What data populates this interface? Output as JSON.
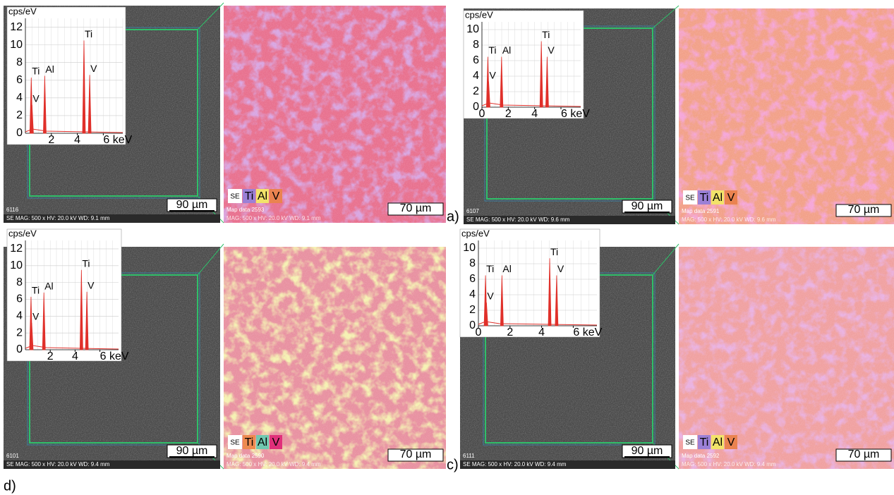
{
  "panels": [
    {
      "label": "a)",
      "se": {
        "id": "6116",
        "caption": "SE  MAG: 500 x  HV: 20.0 kV  WD: 9.1 mm",
        "scale": "90 µm"
      },
      "map": {
        "legend": [
          {
            "name": "SE",
            "color": "#ffffff"
          },
          {
            "name": "Ti",
            "color": "#9b80d6"
          },
          {
            "name": "Al",
            "color": "#f2e36a"
          },
          {
            "name": "V",
            "color": "#ea8350"
          }
        ],
        "id": "Map data 2593",
        "caption": "MAG: 500 x  HV: 20.0 kV  WD: 9.1 mm",
        "scale": "70 µm",
        "colors": [
          "#e8708e",
          "#b060c0"
        ]
      },
      "spectrum": {
        "y_label": "cps/eV",
        "ylim": [
          0,
          13
        ],
        "yticks": [
          0,
          2,
          4,
          6,
          8,
          10,
          12
        ],
        "xlim": [
          0,
          7.5
        ],
        "xticks": [
          2,
          4,
          {
            "value": 6,
            "label": "6 keV"
          }
        ],
        "color": "#e0302a",
        "peaks": [
          {
            "label": "Ti",
            "x": 0.45,
            "y": 6.3
          },
          {
            "label": "V",
            "x": 0.51,
            "y": 3.2
          },
          {
            "label": "Al",
            "x": 1.49,
            "y": 6.5
          },
          {
            "label": "Ti",
            "x": 4.51,
            "y": 10.5
          },
          {
            "label": "V",
            "x": 4.95,
            "y": 6.6
          }
        ]
      }
    },
    {
      "se": {
        "id": "6107",
        "caption": "SE  MAG: 500 x  HV: 20.0 kV  WD: 9.6 mm",
        "scale": "90 µm"
      },
      "map": {
        "legend": [
          {
            "name": "SE",
            "color": "#ffffff"
          },
          {
            "name": "Ti",
            "color": "#9b80d6"
          },
          {
            "name": "Al",
            "color": "#f2e36a"
          },
          {
            "name": "V",
            "color": "#ea8350"
          }
        ],
        "id": "Map data 2591",
        "caption": "MAG: 500 x  HV: 20.0 kV  WD: 9.6 mm",
        "scale": "70 µm",
        "colors": [
          "#f2a088",
          "#e860b0"
        ]
      },
      "spectrum": {
        "y_label": "cps/eV",
        "ylim": [
          0,
          11
        ],
        "yticks": [
          0,
          2,
          4,
          6,
          8,
          10
        ],
        "xlim": [
          0,
          7.5
        ],
        "xticks": [
          0,
          2,
          4,
          {
            "value": 6,
            "label": "6 keV"
          }
        ],
        "color": "#e0302a",
        "peaks": [
          {
            "label": "Ti",
            "x": 0.45,
            "y": 6.5
          },
          {
            "label": "Al",
            "x": 1.49,
            "y": 6.5
          },
          {
            "label": "V",
            "x": 0.51,
            "y": 3.3
          },
          {
            "label": "Ti",
            "x": 4.51,
            "y": 8.5
          },
          {
            "label": "V",
            "x": 4.95,
            "y": 6.5
          }
        ]
      }
    },
    {
      "label": "c)",
      "se": {
        "id": "6101",
        "caption": "SE  MAG: 500 x  HV: 20.0 kV  WD: 9.4 mm",
        "scale": "90 µm"
      },
      "map": {
        "legend": [
          {
            "name": "SE",
            "color": "#ffffff"
          },
          {
            "name": "Ti",
            "color": "#ee8a50"
          },
          {
            "name": "Al",
            "color": "#70c8b0"
          },
          {
            "name": "V",
            "color": "#e0307a"
          }
        ],
        "id": "Map data 2590",
        "caption": "MAG: 500 x  HV: 20.0 kV  WD: 9.4 mm",
        "scale": "70 µm",
        "colors": [
          "#e890a0",
          "#e8e070"
        ]
      },
      "spectrum": {
        "y_label": "cps/eV",
        "ylim": [
          0,
          13
        ],
        "yticks": [
          0,
          2,
          4,
          6,
          8,
          10,
          12
        ],
        "xlim": [
          0,
          7.5
        ],
        "xticks": [
          2,
          4,
          {
            "value": 6,
            "label": "6 keV"
          }
        ],
        "color": "#e0302a",
        "peaks": [
          {
            "label": "Ti",
            "x": 0.45,
            "y": 6.3
          },
          {
            "label": "V",
            "x": 0.51,
            "y": 3.2
          },
          {
            "label": "Al",
            "x": 1.49,
            "y": 6.8
          },
          {
            "label": "Ti",
            "x": 4.51,
            "y": 9.5
          },
          {
            "label": "V",
            "x": 4.95,
            "y": 6.9
          }
        ]
      }
    },
    {
      "label": "d)",
      "se": {
        "id": "6111",
        "caption": "SE  MAG: 500 x  HV: 20.0 kV  WD: 9.4 mm",
        "scale": "90 µm"
      },
      "map": {
        "legend": [
          {
            "name": "SE",
            "color": "#ffffff"
          },
          {
            "name": "Ti",
            "color": "#9b80d6"
          },
          {
            "name": "Al",
            "color": "#f2e36a"
          },
          {
            "name": "V",
            "color": "#ea8350"
          }
        ],
        "id": "Map data 2592",
        "caption": "MAG: 500 x  HV: 20.0 kV  WD: 9.4 mm",
        "scale": "70 µm",
        "colors": [
          "#f0a0a0",
          "#d070c0"
        ]
      },
      "spectrum": {
        "y_label": "cps/eV",
        "ylim": [
          0,
          11
        ],
        "yticks": [
          0,
          2,
          4,
          6,
          8,
          10
        ],
        "xlim": [
          0,
          7.5
        ],
        "xticks": [
          0,
          2,
          4,
          {
            "value": 6,
            "label": "6 keV"
          }
        ],
        "color": "#e0302a",
        "peaks": [
          {
            "label": "Ti",
            "x": 0.45,
            "y": 6.5
          },
          {
            "label": "V",
            "x": 0.51,
            "y": 3.0
          },
          {
            "label": "Al",
            "x": 1.49,
            "y": 6.5
          },
          {
            "label": "Ti",
            "x": 4.51,
            "y": 8.7
          },
          {
            "label": "V",
            "x": 4.95,
            "y": 6.5
          }
        ]
      }
    }
  ]
}
